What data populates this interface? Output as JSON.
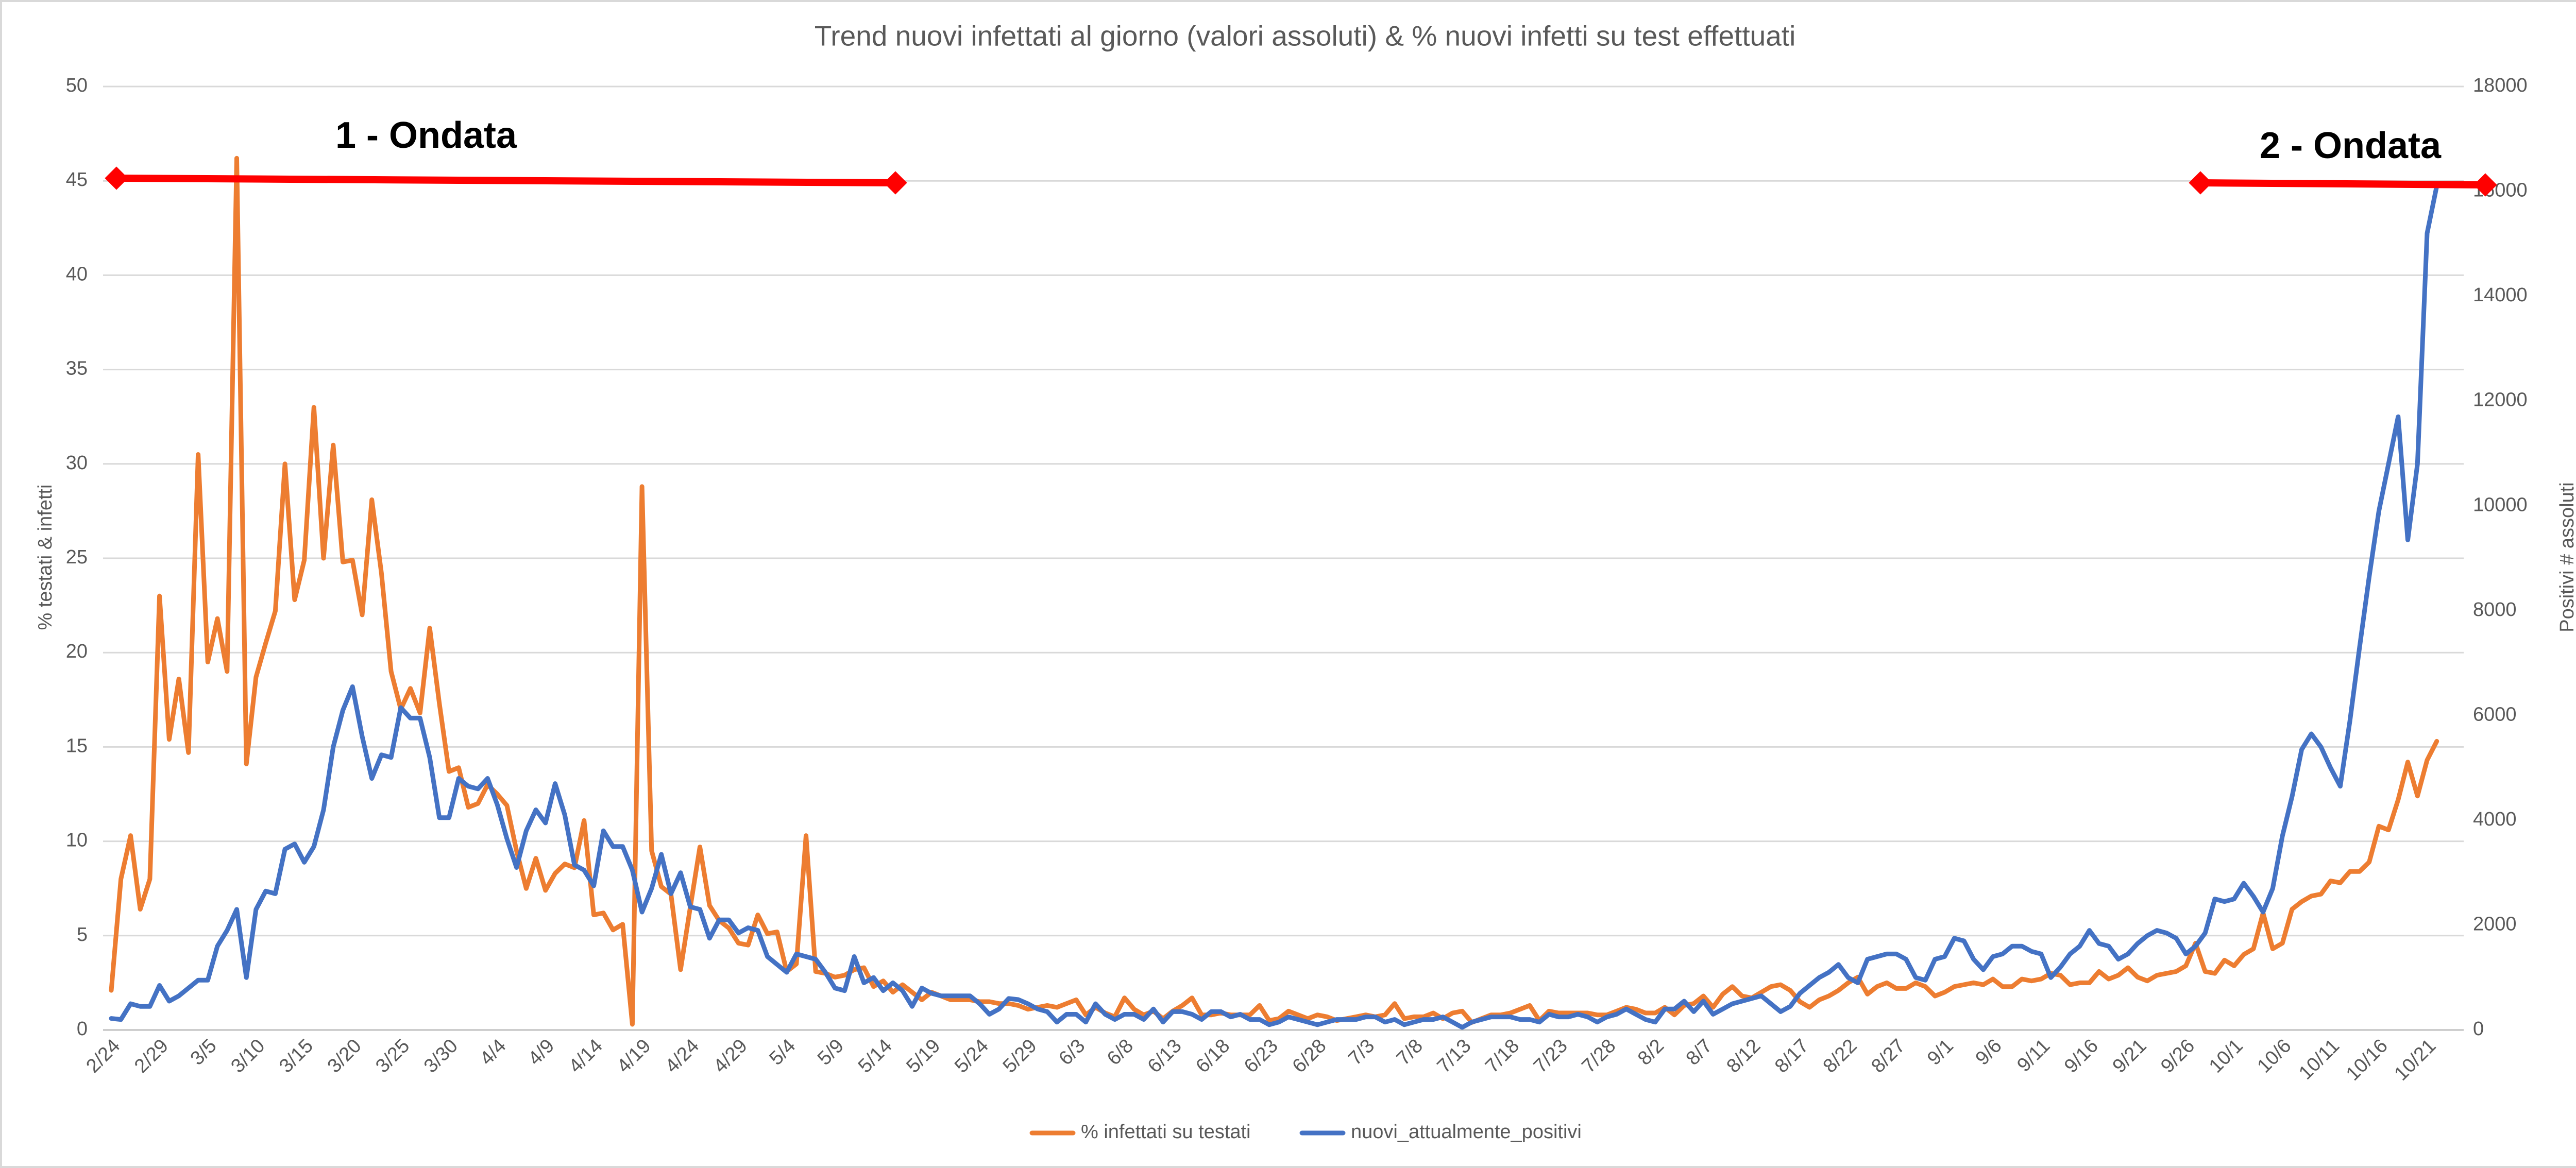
{
  "chart_data": {
    "type": "line",
    "title": "Trend nuovi infettati al giorno (valori assoluti) & % nuovi infetti su test effettuati",
    "ylabel": "% testati & infetti",
    "y2label": "Positivi # assoluti",
    "annotations": [
      "1 - Ondata",
      "2 - Ondata"
    ],
    "categories": [
      "2/24",
      null,
      null,
      null,
      null,
      "2/29",
      null,
      null,
      null,
      null,
      "3/5",
      null,
      null,
      null,
      null,
      "3/10",
      null,
      null,
      null,
      null,
      "3/15",
      null,
      null,
      null,
      null,
      "3/20",
      null,
      null,
      null,
      null,
      "3/25",
      null,
      null,
      null,
      null,
      "3/30",
      null,
      null,
      null,
      null,
      "4/4",
      null,
      null,
      null,
      null,
      "4/9",
      null,
      null,
      null,
      null,
      "4/14",
      null,
      null,
      null,
      null,
      "4/19",
      null,
      null,
      null,
      null,
      "4/24",
      null,
      null,
      null,
      null,
      "4/29",
      null,
      null,
      null,
      null,
      "5/4",
      null,
      null,
      null,
      null,
      "5/9",
      null,
      null,
      null,
      null,
      "5/14",
      null,
      null,
      null,
      null,
      "5/19",
      null,
      null,
      null,
      null,
      "5/24",
      null,
      null,
      null,
      null,
      "5/29",
      null,
      null,
      null,
      null,
      "6/3",
      null,
      null,
      null,
      null,
      "6/8",
      null,
      null,
      null,
      null,
      "6/13",
      null,
      null,
      null,
      null,
      "6/18",
      null,
      null,
      null,
      null,
      "6/23",
      null,
      null,
      null,
      null,
      "6/28",
      null,
      null,
      null,
      null,
      "7/3",
      null,
      null,
      null,
      null,
      "7/8",
      null,
      null,
      null,
      null,
      "7/13",
      null,
      null,
      null,
      null,
      "7/18",
      null,
      null,
      null,
      null,
      "7/23",
      null,
      null,
      null,
      null,
      "7/28",
      null,
      null,
      null,
      null,
      "8/2",
      null,
      null,
      null,
      null,
      "8/7",
      null,
      null,
      null,
      null,
      "8/12",
      null,
      null,
      null,
      null,
      "8/17",
      null,
      null,
      null,
      null,
      "8/22",
      null,
      null,
      null,
      null,
      "8/27",
      null,
      null,
      null,
      null,
      "9/1",
      null,
      null,
      null,
      null,
      "9/6",
      null,
      null,
      null,
      null,
      "9/11",
      null,
      null,
      null,
      null,
      "9/16",
      null,
      null,
      null,
      null,
      "9/21",
      null,
      null,
      null,
      null,
      "9/26",
      null,
      null,
      null,
      null,
      "10/1",
      null,
      null,
      null,
      null,
      "10/6",
      null,
      null,
      null,
      null,
      "10/11",
      null,
      null,
      null,
      null,
      "10/16",
      null,
      null,
      null,
      null,
      "10/21",
      null
    ],
    "series": [
      {
        "name": "% infettati su testati",
        "color": "#ed7d31",
        "values": [
          2.1,
          8,
          10.3,
          6.4,
          8,
          23,
          15.4,
          18.6,
          14.7,
          30.5,
          19.5,
          21.8,
          19,
          46.2,
          14.1,
          18.7,
          20.5,
          22.2,
          30,
          22.8,
          24.9,
          33,
          25,
          31,
          24.8,
          24.9,
          22,
          28.1,
          24.2,
          19,
          17,
          18.1,
          16.8,
          21.3,
          17.3,
          13.7,
          13.9,
          11.8,
          12,
          13,
          12.5,
          11.9,
          9.5,
          7.5,
          9.1,
          7.4,
          8.3,
          8.8,
          8.6,
          11.1,
          6.1,
          6.2,
          5.3,
          5.6,
          0.3,
          28.8,
          9.5,
          7.6,
          7.2,
          3.2,
          6.5,
          9.7,
          6.6,
          5.8,
          5.4,
          4.6,
          4.5,
          6.1,
          5.1,
          5.2,
          3.1,
          3.5,
          10.3,
          3.1,
          3,
          2.8,
          2.9,
          3.2,
          3.3,
          2.3,
          2.6,
          2,
          2.4,
          2,
          1.6,
          2,
          1.8,
          1.6,
          1.6,
          1.6,
          1.5,
          1.5,
          1.4,
          1.4,
          1.3,
          1.1,
          1.2,
          1.3,
          1.2,
          1.4,
          1.6,
          0.8,
          1.2,
          0.9,
          0.7,
          1.7,
          1.1,
          0.8,
          1,
          0.6,
          1,
          1.3,
          1.7,
          0.8,
          0.8,
          0.9,
          0.8,
          0.8,
          0.8,
          1.3,
          0.5,
          0.6,
          1,
          0.8,
          0.6,
          0.8,
          0.7,
          0.5,
          0.6,
          0.7,
          0.8,
          0.7,
          0.8,
          1.4,
          0.6,
          0.7,
          0.7,
          0.9,
          0.6,
          0.9,
          1,
          0.4,
          0.6,
          0.8,
          0.8,
          0.9,
          1.1,
          1.3,
          0.5,
          1,
          0.9,
          0.9,
          0.9,
          0.9,
          0.8,
          0.8,
          1,
          1.2,
          1.1,
          0.9,
          0.9,
          1.2,
          0.8,
          1.3,
          1.4,
          1.8,
          1.2,
          1.9,
          2.3,
          1.8,
          1.7,
          2,
          2.3,
          2.4,
          2.1,
          1.5,
          1.2,
          1.6,
          1.8,
          2.1,
          2.5,
          2.8,
          1.9,
          2.3,
          2.5,
          2.2,
          2.2,
          2.5,
          2.3,
          1.8,
          2,
          2.3,
          2.4,
          2.5,
          2.4,
          2.7,
          2.3,
          2.3,
          2.7,
          2.6,
          2.7,
          3,
          2.9,
          2.4,
          2.5,
          2.5,
          3.1,
          2.7,
          2.9,
          3.3,
          2.8,
          2.6,
          2.9,
          3,
          3.1,
          3.4,
          4.6,
          3.1,
          3,
          3.7,
          3.4,
          4,
          4.3,
          6.2,
          4.3,
          4.6,
          6.4,
          6.8,
          7.1,
          7.2,
          7.9,
          7.8,
          8.4,
          8.4,
          8.9,
          10.8,
          10.6,
          12.2,
          14.2,
          12.4,
          14.3,
          15.3
        ]
      },
      {
        "name": "nuovi_attualmente_positivi",
        "color": "#4472c4",
        "axis": "y2",
        "values": [
          220,
          200,
          500,
          450,
          450,
          850,
          550,
          650,
          800,
          950,
          950,
          1600,
          1900,
          2300,
          1000,
          2300,
          2650,
          2600,
          3450,
          3550,
          3200,
          3500,
          4200,
          5400,
          6100,
          6550,
          5600,
          4800,
          5250,
          5200,
          6150,
          5950,
          5950,
          5200,
          4050,
          4050,
          4800,
          4650,
          4600,
          4800,
          4300,
          3650,
          3100,
          3800,
          4200,
          3950,
          4700,
          4100,
          3150,
          3050,
          2750,
          3800,
          3500,
          3500,
          3050,
          2250,
          2700,
          3350,
          2600,
          3000,
          2350,
          2300,
          1750,
          2100,
          2100,
          1850,
          1950,
          1900,
          1400,
          1250,
          1100,
          1450,
          1400,
          1350,
          1100,
          800,
          750,
          1400,
          900,
          1000,
          750,
          900,
          750,
          450,
          800,
          700,
          650,
          650,
          650,
          650,
          500,
          300,
          400,
          600,
          580,
          500,
          400,
          350,
          150,
          300,
          300,
          150,
          500,
          300,
          200,
          300,
          300,
          200,
          400,
          150,
          350,
          350,
          300,
          200,
          350,
          350,
          250,
          300,
          200,
          200,
          100,
          150,
          250,
          200,
          150,
          100,
          150,
          200,
          200,
          200,
          250,
          250,
          150,
          200,
          100,
          150,
          200,
          200,
          250,
          150,
          50,
          150,
          200,
          250,
          250,
          250,
          200,
          200,
          150,
          300,
          250,
          250,
          300,
          250,
          150,
          250,
          300,
          400,
          300,
          200,
          150,
          400,
          400,
          550,
          350,
          550,
          300,
          400,
          500,
          550,
          600,
          650,
          500,
          350,
          450,
          700,
          850,
          1000,
          1100,
          1250,
          1000,
          900,
          1350,
          1400,
          1450,
          1450,
          1350,
          1000,
          950,
          1350,
          1400,
          1750,
          1700,
          1350,
          1150,
          1400,
          1450,
          1600,
          1600,
          1500,
          1450,
          1000,
          1200,
          1450,
          1600,
          1900,
          1650,
          1600,
          1350,
          1450,
          1650,
          1800,
          1900,
          1850,
          1750,
          1450,
          1600,
          1850,
          2500,
          2450,
          2500,
          2800,
          2550,
          2250,
          2700,
          3700,
          4450,
          5350,
          5650,
          5400,
          5000,
          4650,
          5900,
          7300,
          8650,
          9900,
          10800,
          11700,
          9350,
          10800,
          15200,
          16100
        ]
      }
    ],
    "ylim": [
      0,
      50
    ],
    "yticks": [
      0,
      5,
      10,
      15,
      20,
      25,
      30,
      35,
      40,
      45,
      50
    ],
    "y2lim": [
      0,
      18000
    ],
    "y2ticks": [
      0,
      2000,
      4000,
      6000,
      8000,
      10000,
      12000,
      14000,
      16000,
      18000
    ],
    "grid": true,
    "legend": "bottom"
  }
}
